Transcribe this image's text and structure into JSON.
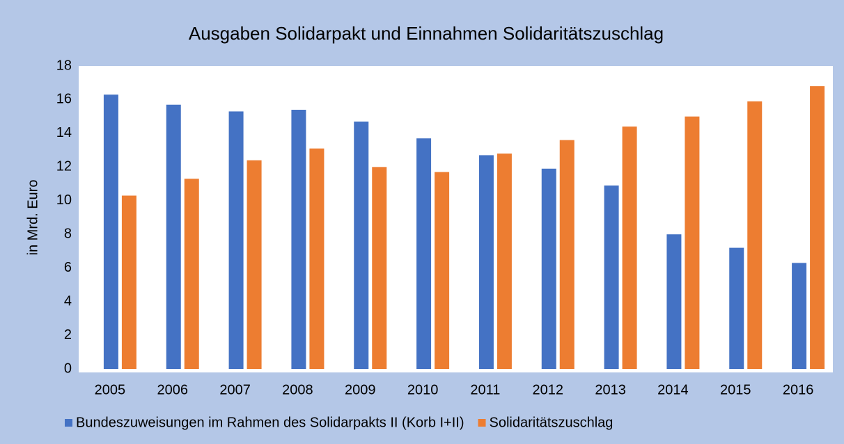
{
  "chart_data": {
    "type": "bar",
    "title": "Ausgaben Solidarpakt und Einnahmen Solidaritätszuschlag",
    "y_label": "in Mrd. Euro",
    "categories": [
      "2005",
      "2006",
      "2007",
      "2008",
      "2009",
      "2010",
      "2011",
      "2012",
      "2013",
      "2014",
      "2015",
      "2016"
    ],
    "series": [
      {
        "name": "Bundeszuweisungen im Rahmen des Solidarpakts II (Korb I+II)",
        "color": "#4472c4",
        "values": [
          16.3,
          15.7,
          15.3,
          15.4,
          14.7,
          13.7,
          12.7,
          11.9,
          10.9,
          8.0,
          7.2,
          6.3
        ]
      },
      {
        "name": "Solidaritätszuschlag",
        "color": "#ed7d31",
        "values": [
          10.3,
          11.3,
          12.4,
          13.1,
          12.0,
          11.7,
          12.8,
          13.6,
          14.4,
          15.0,
          15.9,
          16.8
        ]
      }
    ],
    "ylim": [
      0,
      18
    ],
    "yticks": [
      0,
      2,
      4,
      6,
      8,
      10,
      12,
      14,
      16,
      18
    ],
    "grid": false,
    "legend": "bottom"
  }
}
